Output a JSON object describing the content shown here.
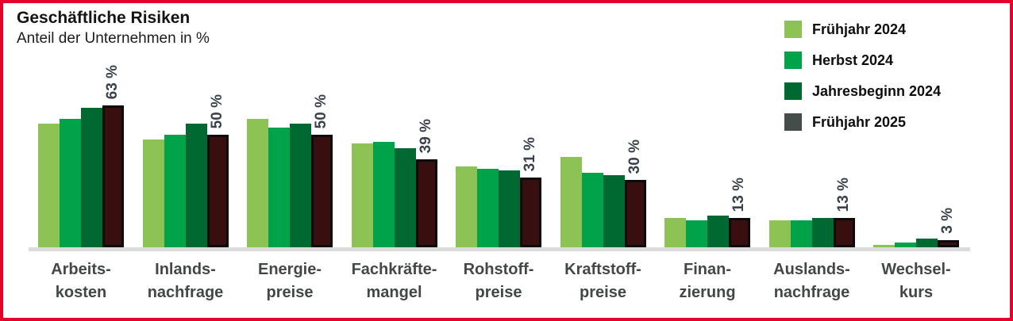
{
  "title": "Geschäftliche Risiken",
  "subtitle": "Anteil der Unternehmen in %",
  "colors": {
    "frame_red": "#E4032B",
    "series": [
      "#8DC355",
      "#00A34A",
      "#006931",
      "#380E0E"
    ],
    "series4_border": "#0B0B0B",
    "legend_swatch_series4": "#454D4B",
    "baseline": "#DBDBDB",
    "category_label": "#424845",
    "value_label": "#3A414B"
  },
  "legend": [
    {
      "label": "Frühjahr 2024",
      "color": "#8DC355"
    },
    {
      "label": "Herbst 2024",
      "color": "#00A34A"
    },
    {
      "label": "Jahresbeginn 2024",
      "color": "#006931"
    },
    {
      "label": "Frühjahr 2025",
      "color": "#454D4B"
    }
  ],
  "chart_data": {
    "type": "bar",
    "title": "Geschäftliche Risiken",
    "subtitle": "Anteil der Unternehmen in %",
    "unit": "%",
    "ylim": [
      0,
      70
    ],
    "grid": false,
    "legend_position": "top-right",
    "categories": [
      [
        "Arbeits-",
        "kosten"
      ],
      [
        "Inlands-",
        "nachfrage"
      ],
      [
        "Energie-",
        "preise"
      ],
      [
        "Fachkräfte-",
        "mangel"
      ],
      [
        "Rohstoff-",
        "preise"
      ],
      [
        "Kraftstoff-",
        "preise"
      ],
      [
        "Finan-",
        "zierung"
      ],
      [
        "Auslands-",
        "nachfrage"
      ],
      [
        "Wechsel-",
        "kurs"
      ]
    ],
    "series": [
      {
        "name": "Frühjahr 2024",
        "values": [
          55,
          48,
          57,
          46,
          36,
          40,
          13,
          12,
          1
        ]
      },
      {
        "name": "Herbst 2024",
        "values": [
          57,
          50,
          53,
          47,
          35,
          33,
          12,
          12,
          2
        ]
      },
      {
        "name": "Jahresbeginn 2024",
        "values": [
          62,
          55,
          55,
          44,
          34,
          32,
          14,
          13,
          4
        ]
      },
      {
        "name": "Frühjahr 2025",
        "values": [
          63,
          50,
          50,
          39,
          31,
          30,
          13,
          13,
          3
        ]
      }
    ],
    "bar_labels": [
      "63 %",
      "50 %",
      "50 %",
      "39 %",
      "31 %",
      "30 %",
      "13 %",
      "13 %",
      "3 %"
    ],
    "bar_labels_series": "Frühjahr 2025"
  }
}
